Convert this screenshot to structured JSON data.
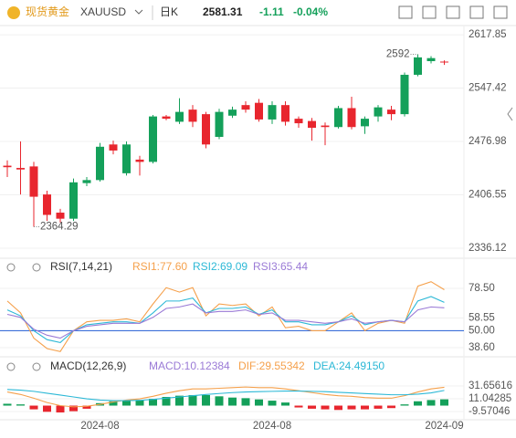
{
  "header": {
    "name": "现货黄金",
    "symbol": "XAUUSD",
    "period": "日K",
    "change": "-1.11",
    "change_pct": "-0.04%"
  },
  "chart_data": [
    {
      "type": "candlestick",
      "up_color": "#14a05a",
      "down_color": "#e8262e",
      "categories": [
        null,
        null,
        null,
        null,
        null,
        null,
        null,
        "2024-08",
        null,
        null,
        null,
        null,
        null,
        null,
        null,
        null,
        null,
        null,
        null,
        null,
        "2024-08",
        null,
        null,
        null,
        null,
        null,
        null,
        null,
        null,
        null,
        null,
        null,
        null,
        "2024-09"
      ],
      "candles": [
        {
          "open": 2445,
          "close": 2443,
          "high": 2452,
          "low": 2430
        },
        {
          "open": 2442,
          "close": 2440,
          "high": 2477,
          "low": 2407
        },
        {
          "open": 2444,
          "close": 2404,
          "high": 2450,
          "low": 2364.29
        },
        {
          "open": 2407,
          "close": 2380,
          "high": 2412,
          "low": 2372
        },
        {
          "open": 2383,
          "close": 2375,
          "high": 2388,
          "low": 2370
        },
        {
          "open": 2375,
          "close": 2423,
          "high": 2428,
          "low": 2372
        },
        {
          "open": 2422,
          "close": 2426,
          "high": 2430,
          "low": 2418
        },
        {
          "open": 2426,
          "close": 2470,
          "high": 2475,
          "low": 2424
        },
        {
          "open": 2473,
          "close": 2465,
          "high": 2478,
          "low": 2460
        },
        {
          "open": 2435,
          "close": 2473,
          "high": 2477,
          "low": 2432
        },
        {
          "open": 2453,
          "close": 2450,
          "high": 2458,
          "low": 2432
        },
        {
          "open": 2450,
          "close": 2510,
          "high": 2512,
          "low": 2448
        },
        {
          "open": 2510,
          "close": 2507,
          "high": 2512,
          "low": 2505
        },
        {
          "open": 2503,
          "close": 2516,
          "high": 2534,
          "low": 2500
        },
        {
          "open": 2519,
          "close": 2503,
          "high": 2525,
          "low": 2496
        },
        {
          "open": 2513,
          "close": 2473,
          "high": 2516,
          "low": 2468
        },
        {
          "open": 2483,
          "close": 2516,
          "high": 2520,
          "low": 2480
        },
        {
          "open": 2511,
          "close": 2519,
          "high": 2523,
          "low": 2508
        },
        {
          "open": 2525,
          "close": 2519,
          "high": 2530,
          "low": 2515
        },
        {
          "open": 2528,
          "close": 2506,
          "high": 2533,
          "low": 2503
        },
        {
          "open": 2506,
          "close": 2525,
          "high": 2530,
          "low": 2500
        },
        {
          "open": 2525,
          "close": 2503,
          "high": 2530,
          "low": 2498
        },
        {
          "open": 2507,
          "close": 2501,
          "high": 2510,
          "low": 2495
        },
        {
          "open": 2504,
          "close": 2495,
          "high": 2508,
          "low": 2478
        },
        {
          "open": 2498,
          "close": 2496,
          "high": 2502,
          "low": 2472
        },
        {
          "open": 2496,
          "close": 2521,
          "high": 2524,
          "low": 2494
        },
        {
          "open": 2521,
          "close": 2496,
          "high": 2536,
          "low": 2493
        },
        {
          "open": 2497,
          "close": 2507,
          "high": 2510,
          "low": 2487
        },
        {
          "open": 2510,
          "close": 2522,
          "high": 2525,
          "low": 2503
        },
        {
          "open": 2519,
          "close": 2513,
          "high": 2524,
          "low": 2505
        },
        {
          "open": 2513,
          "close": 2565,
          "high": 2568,
          "low": 2510
        },
        {
          "open": 2565,
          "close": 2588,
          "high": 2592,
          "low": 2563
        },
        {
          "open": 2583,
          "close": 2587,
          "high": 2589.68,
          "low": 2580
        },
        {
          "open": 2582.42,
          "close": 2581.31,
          "high": 2584,
          "low": 2578
        }
      ],
      "ylim": [
        2324,
        2630
      ],
      "yticks": [
        2617.85,
        2547.42,
        2476.98,
        2406.55,
        2336.12
      ],
      "grid": true
    },
    {
      "type": "line",
      "title": "RSI(7,14,21)",
      "series": [
        {
          "name": "RSI1:77.60",
          "color": "#f5a04b",
          "values": [
            70,
            62,
            45,
            38,
            36,
            50,
            56,
            57,
            57,
            58,
            56,
            68,
            79,
            76,
            79,
            60,
            68,
            67,
            68,
            60,
            66,
            52,
            53,
            50,
            50,
            56,
            62,
            50,
            55,
            57,
            55,
            80,
            83,
            77.6
          ]
        },
        {
          "name": "RSI2:69.09",
          "color": "#2cb8d6",
          "values": [
            64,
            60,
            50,
            44,
            42,
            50,
            54,
            55,
            56,
            56,
            55,
            62,
            70,
            70,
            72,
            62,
            65,
            65,
            66,
            61,
            64,
            56,
            56,
            54,
            54,
            56,
            60,
            54,
            56,
            57,
            56,
            70,
            73,
            69.09
          ]
        },
        {
          "name": "RSI3:65.44",
          "color": "#9a7ad6",
          "values": [
            61,
            59,
            51,
            47,
            45,
            50,
            53,
            54,
            55,
            55,
            55,
            59,
            65,
            66,
            68,
            62,
            63,
            63,
            64,
            61,
            62,
            57,
            57,
            56,
            55,
            56,
            58,
            55,
            56,
            57,
            56,
            64,
            66,
            65.44
          ]
        }
      ],
      "ylim": [
        34.3,
        86.5
      ],
      "yticks": [
        {
          "value": 78.5,
          "label": "78.50"
        },
        58.55,
        {
          "value": 50,
          "label": "50.00",
          "color": "#3b6fd9"
        },
        {
          "value": 38.6,
          "label": "38.60"
        }
      ]
    },
    {
      "type": "macd",
      "title": "MACD(12,26,9)",
      "histogram": {
        "name": "MACD:10.12384",
        "color": "#9a7ad6",
        "up_color": "#14a05a",
        "down_color": "#e8262e",
        "values": [
          3,
          2,
          -6,
          -10,
          -11,
          -9,
          -5,
          4,
          7,
          8,
          9,
          11,
          14,
          16,
          17,
          17,
          15,
          13,
          12,
          10,
          8,
          5,
          -3,
          -5,
          -6,
          -7,
          -6,
          -6,
          -5,
          -4,
          2,
          7,
          9,
          10.12
        ]
      },
      "series": [
        {
          "name": "DIF:29.55342",
          "color": "#f5a04b",
          "values": [
            22,
            18,
            12,
            5,
            0,
            -2,
            -1,
            2,
            6,
            9,
            11,
            15,
            20,
            24,
            27,
            27,
            28,
            29,
            30,
            29,
            29,
            27,
            24,
            21,
            18,
            16,
            15,
            13,
            12,
            12,
            16,
            22,
            27,
            29.55
          ]
        },
        {
          "name": "DEA:24.49150",
          "color": "#2cb8d6",
          "values": [
            26,
            25,
            23,
            20,
            17,
            14,
            11,
            9,
            8,
            8,
            8.5,
            10,
            12,
            14,
            16,
            18,
            19.5,
            21,
            22,
            22.5,
            23,
            23.5,
            23.5,
            23,
            22.5,
            21.5,
            20.5,
            19.5,
            18.5,
            17.5,
            17.5,
            18.5,
            20.5,
            24.49
          ]
        }
      ],
      "ylim": [
        -22.8,
        50.8
      ],
      "yticks": [
        31.65616,
        11.04285,
        -9.57046
      ]
    }
  ]
}
